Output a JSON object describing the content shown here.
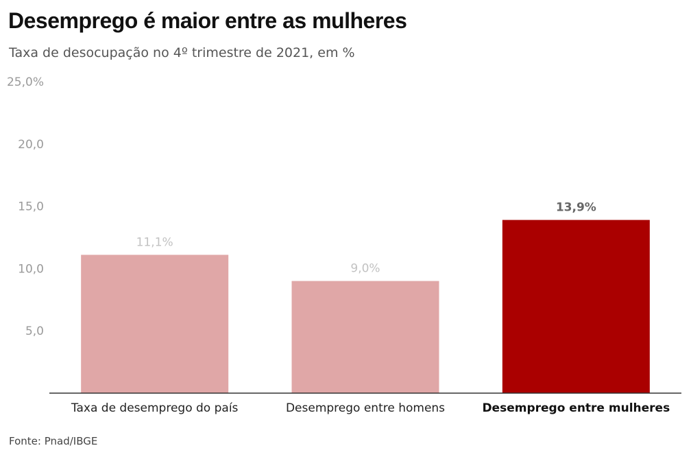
{
  "title": "Desemprego é maior entre as mulheres",
  "subtitle": "Taxa de desocupação no 4º trimestre de 2021, em %",
  "source": "Fonte: Pnad/IBGE",
  "colors": {
    "bar": "#e0a7a7",
    "highlight": "#aa0000",
    "axis": "#333333"
  },
  "chart_data": {
    "type": "bar",
    "categories": [
      "Taxa de desemprego do país",
      "Desemprego entre homens",
      "Desemprego entre mulheres"
    ],
    "values": [
      11.1,
      9.0,
      13.9
    ],
    "data_labels": [
      "11,1%",
      "9,0%",
      "13,9%"
    ],
    "highlight_index": 2,
    "yticks": [
      5,
      10,
      15,
      20,
      25
    ],
    "ytick_labels": [
      "5,0",
      "10,0",
      "15,0",
      "20,0",
      "25,0%"
    ],
    "ylim": [
      0,
      25
    ],
    "grid": false
  }
}
